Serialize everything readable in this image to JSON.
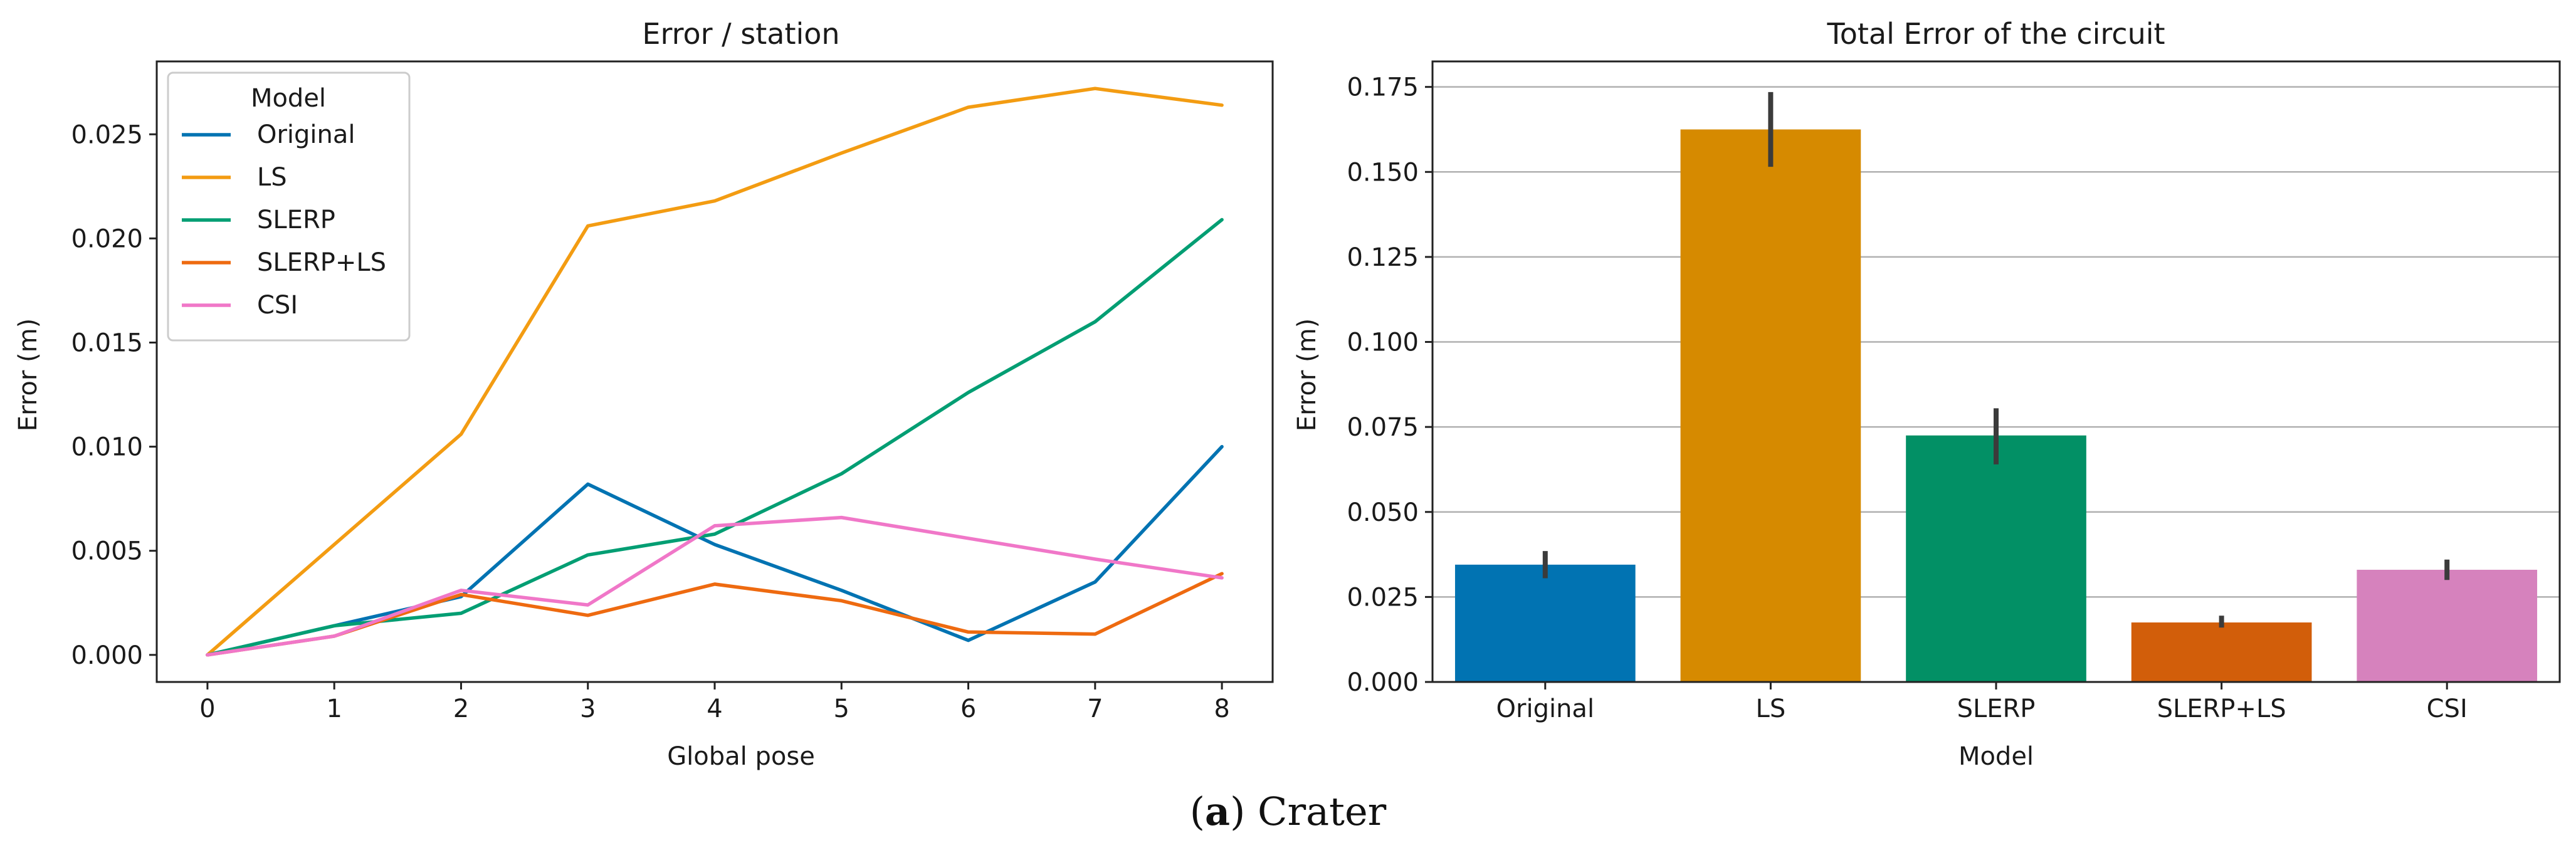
{
  "caption": {
    "label": "a",
    "text": "Crater"
  },
  "chart_data": [
    {
      "type": "line",
      "title": "Error / station",
      "xlabel": "Global pose",
      "ylabel": "Error (m)",
      "x": [
        0,
        1,
        2,
        3,
        4,
        5,
        6,
        7,
        8
      ],
      "xticks": [
        "0",
        "1",
        "2",
        "3",
        "4",
        "5",
        "6",
        "7",
        "8"
      ],
      "yticks": [
        "0.000",
        "0.005",
        "0.010",
        "0.015",
        "0.020",
        "0.025"
      ],
      "ylim": [
        -0.0013,
        0.0285
      ],
      "xlim": [
        -0.4,
        8.4
      ],
      "grid": false,
      "legend": {
        "title": "Model",
        "placement": "top-left"
      },
      "series": [
        {
          "name": "Original",
          "color": "#0173b2",
          "values": [
            0.0,
            0.0014,
            0.0028,
            0.0082,
            0.0053,
            0.0031,
            0.0007,
            0.0035,
            0.01
          ]
        },
        {
          "name": "LS",
          "color": "#f39c12",
          "values": [
            0.0,
            0.0053,
            0.0106,
            0.0206,
            0.0218,
            0.0241,
            0.0263,
            0.0272,
            0.0264
          ]
        },
        {
          "name": "SLERP",
          "color": "#029e73",
          "values": [
            0.0,
            0.0014,
            0.002,
            0.0048,
            0.0058,
            0.0087,
            0.0126,
            0.016,
            0.0209
          ]
        },
        {
          "name": "SLERP+LS",
          "color": "#ee6a10",
          "values": [
            0.0,
            0.0009,
            0.0029,
            0.0019,
            0.0034,
            0.0026,
            0.0011,
            0.001,
            0.0039
          ]
        },
        {
          "name": "CSI",
          "color": "#f077c8",
          "values": [
            0.0,
            0.0009,
            0.0031,
            0.0024,
            0.0062,
            0.0066,
            0.0056,
            0.0046,
            0.0037
          ]
        }
      ]
    },
    {
      "type": "bar",
      "title": "Total Error of the circuit",
      "xlabel": "Model",
      "ylabel": "Error (m)",
      "categories": [
        "Original",
        "LS",
        "SLERP",
        "SLERP+LS",
        "CSI"
      ],
      "values": [
        0.0345,
        0.1625,
        0.0725,
        0.0175,
        0.033
      ],
      "error_low": [
        0.0305,
        0.1515,
        0.064,
        0.016,
        0.03
      ],
      "error_high": [
        0.0385,
        0.1735,
        0.0805,
        0.0195,
        0.036
      ],
      "colors": [
        "#0173b2",
        "#d68a00",
        "#029065",
        "#d25e0a",
        "#d682bd"
      ],
      "yticks": [
        "0.000",
        "0.025",
        "0.050",
        "0.075",
        "0.100",
        "0.125",
        "0.150",
        "0.175"
      ],
      "ylim": [
        0,
        0.1825
      ],
      "grid": true
    }
  ]
}
